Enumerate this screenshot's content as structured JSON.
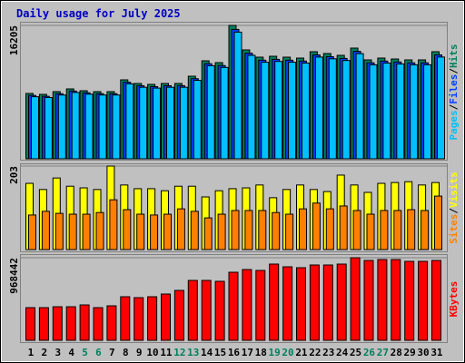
{
  "chart_data": {
    "title": "Daily usage for July 2025",
    "categories": [
      "1",
      "2",
      "3",
      "4",
      "5",
      "6",
      "7",
      "8",
      "9",
      "10",
      "11",
      "12",
      "13",
      "14",
      "15",
      "16",
      "17",
      "18",
      "19",
      "20",
      "21",
      "22",
      "23",
      "24",
      "25",
      "26",
      "27",
      "28",
      "29",
      "30",
      "31"
    ],
    "category_colors": [
      "#000000",
      "#000000",
      "#000000",
      "#000000",
      "#00805c",
      "#00805c",
      "#000000",
      "#000000",
      "#000000",
      "#000000",
      "#000000",
      "#00805c",
      "#00805c",
      "#000000",
      "#000000",
      "#000000",
      "#000000",
      "#000000",
      "#00805c",
      "#00805c",
      "#000000",
      "#000000",
      "#000000",
      "#000000",
      "#000000",
      "#00805c",
      "#00805c",
      "#000000",
      "#000000",
      "#000000",
      "#000000"
    ],
    "legend_separator": "/",
    "panels": [
      {
        "type": "bar",
        "ylim": [
          0,
          16205
        ],
        "yticks": [
          16205
        ],
        "series": [
          {
            "name": "Hits",
            "color": "#00805c",
            "values": [
              7937,
              7827,
              8158,
              8488,
              8268,
              8158,
              8158,
              9591,
              9150,
              9040,
              9150,
              9150,
              10032,
              11906,
              11685,
              16205,
              13229,
              12347,
              12457,
              12347,
              12237,
              13008,
              12788,
              12567,
              13449,
              12016,
              12237,
              12126,
              12016,
              12016,
              13008
            ]
          },
          {
            "name": "Files",
            "color": "#0040ff",
            "values": [
              7700,
              7590,
              7910,
              8230,
              8020,
              7910,
              7910,
              9300,
              8880,
              8770,
              8880,
              8880,
              9730,
              11550,
              11330,
              15720,
              12830,
              11980,
              12080,
              11980,
              11870,
              12620,
              12400,
              12190,
              13050,
              11660,
              11870,
              11760,
              11660,
              11660,
              12620
            ]
          },
          {
            "name": "Pages",
            "color": "#00c0ff",
            "values": [
              7540,
              7440,
              7750,
              8060,
              7850,
              7750,
              7750,
              9110,
              8690,
              8590,
              8690,
              8690,
              9530,
              11310,
              11100,
              15390,
              12570,
              11730,
              11830,
              11730,
              11630,
              12360,
              12150,
              11940,
              12780,
              11420,
              11630,
              11520,
              11420,
              11420,
              12360
            ]
          }
        ]
      },
      {
        "type": "bar",
        "ylim": [
          0,
          203
        ],
        "yticks": [
          203
        ],
        "series": [
          {
            "name": "Visits",
            "color": "#ffff00",
            "values": [
              161,
              146,
              174,
              154,
              150,
              146,
              203,
              157,
              148,
              148,
              143,
              154,
              154,
              128,
              143,
              148,
              150,
              157,
              126,
              146,
              157,
              146,
              141,
              181,
              157,
              139,
              161,
              163,
              165,
              157,
              163
            ]
          },
          {
            "name": "Sites",
            "color": "#ff8000",
            "values": [
              84,
              93,
              88,
              86,
              86,
              90,
              121,
              97,
              86,
              84,
              86,
              99,
              93,
              77,
              86,
              95,
              95,
              95,
              90,
              86,
              99,
              113,
              99,
              106,
              95,
              86,
              95,
              95,
              97,
              95,
              130
            ]
          }
        ]
      },
      {
        "type": "bar",
        "ylim": [
          0,
          968442
        ],
        "yticks": [
          968442
        ],
        "series": [
          {
            "name": "KBytes",
            "color": "#ff0000",
            "values": [
              383115,
              383115,
              393757,
              393757,
              415041,
              383115,
              404399,
              510823,
              500181,
              510823,
              542748,
              585317,
              702396,
              702396,
              691754,
              798188,
              830114,
              819472,
              893969,
              862043,
              851401,
              883327,
              883327,
              893969,
              968442,
              936516,
              947158,
              947158,
              925874,
              925874,
              936516
            ]
          }
        ]
      }
    ]
  }
}
